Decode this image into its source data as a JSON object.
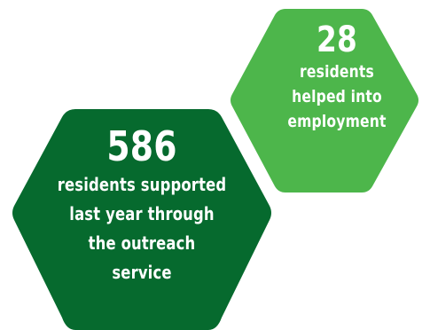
{
  "colors": {
    "dark_green": "#066a2e",
    "light_green": "#4db64b",
    "text": "#ffffff",
    "background": "#ffffff"
  },
  "stat_employment": {
    "number": "28",
    "lines": [
      "residents",
      "helped into",
      "employment"
    ]
  },
  "stat_outreach": {
    "number": "586",
    "lines": [
      "residents supported",
      "last year through",
      "the outreach",
      "service"
    ]
  }
}
